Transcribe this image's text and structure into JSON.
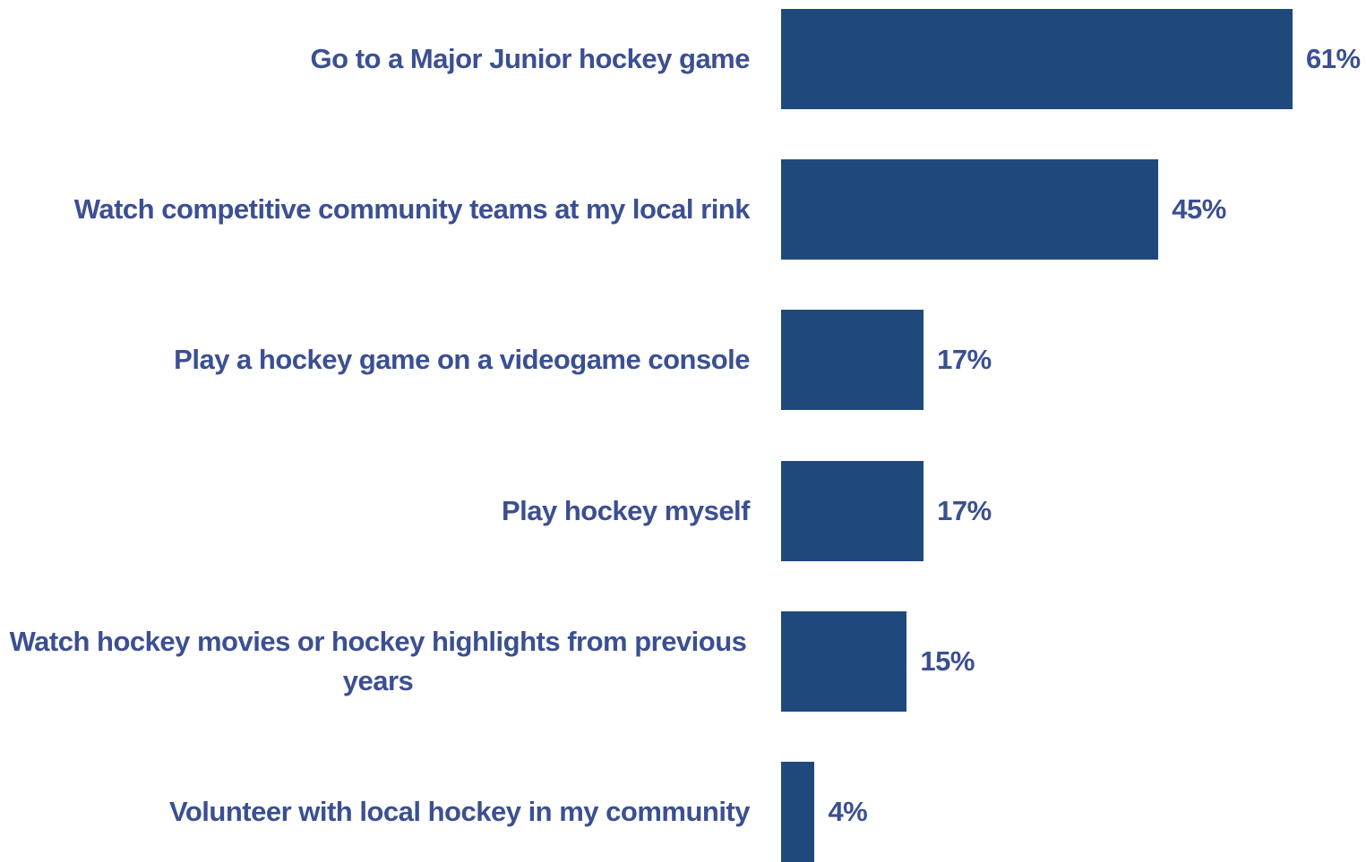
{
  "chart_data": {
    "type": "bar",
    "orientation": "horizontal",
    "categories": [
      "Go to a Major Junior hockey game",
      "Watch competitive community teams at my local rink",
      "Play a hockey game on a videogame console",
      "Play hockey myself",
      "Watch hockey movies or hockey highlights from previous years",
      "Volunteer with local hockey in my community"
    ],
    "values": [
      61,
      45,
      17,
      17,
      15,
      4
    ],
    "value_labels": [
      "61%",
      "45%",
      "17%",
      "17%",
      "15%",
      "4%"
    ],
    "unit": "%",
    "xlim": [
      0,
      61
    ],
    "grid": false,
    "legend": "none",
    "colors": {
      "bar": "#1f497d",
      "text": "#3b4f92"
    }
  }
}
